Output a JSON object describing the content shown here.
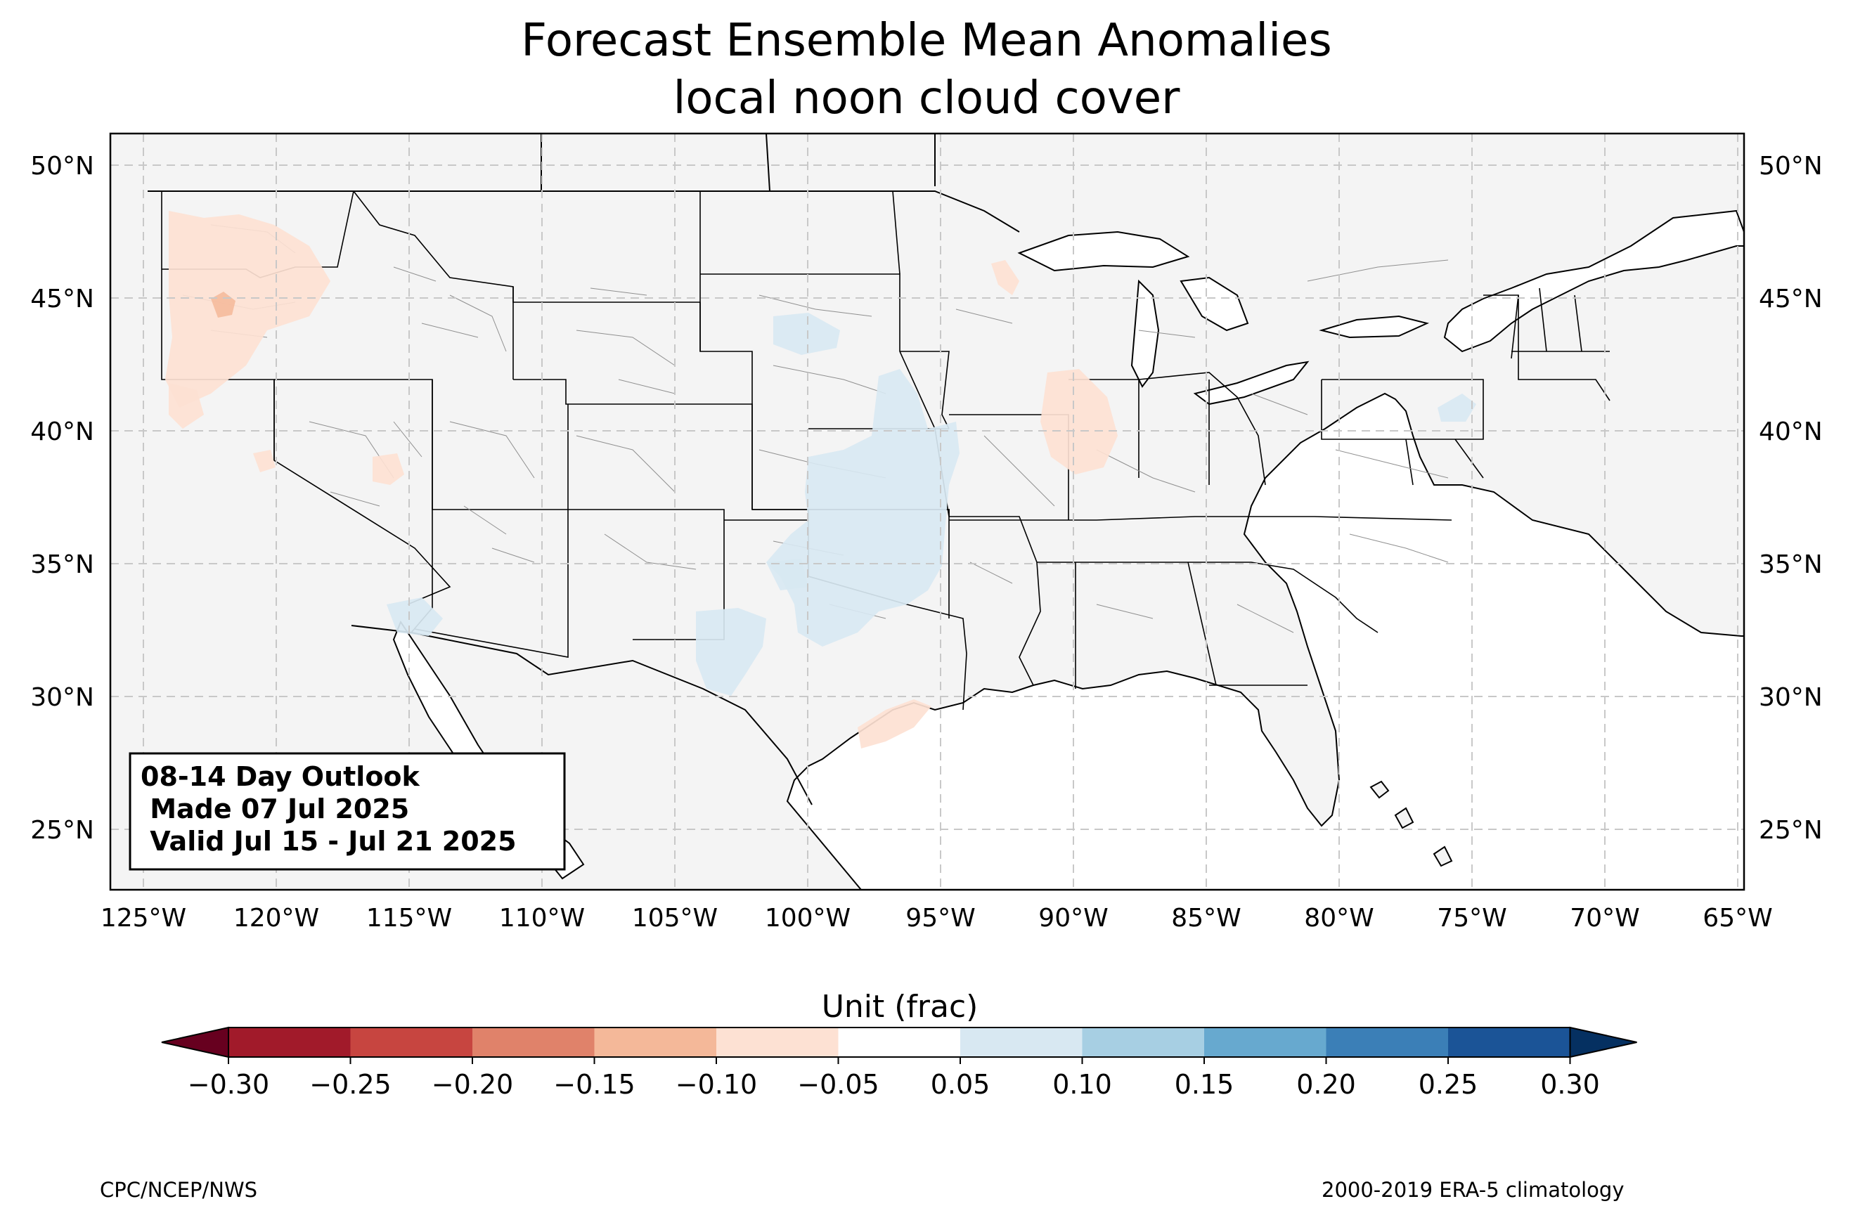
{
  "title": "Forecast Ensemble Mean Anomalies",
  "subtitle": "local noon cloud cover",
  "map": {
    "extent": {
      "lon": [
        -126.25,
        -64.75
      ],
      "lat": [
        22.7,
        51.2
      ]
    },
    "gridlines": "dashed",
    "lon_ticks": [
      "125°W",
      "120°W",
      "115°W",
      "110°W",
      "105°W",
      "100°W",
      "95°W",
      "90°W",
      "85°W",
      "80°W",
      "75°W",
      "70°W",
      "65°W"
    ],
    "lat_ticks": [
      "25°N",
      "30°N",
      "35°N",
      "40°N",
      "45°N",
      "50°N"
    ],
    "land_color": "#f4f4f4",
    "anomaly_regions": [
      {
        "area": "Pacific Northwest (Oregon, Washington)",
        "range": "-0.10 to -0.05",
        "core": "-0.15 to -0.10"
      },
      {
        "area": "Northern California",
        "range": "-0.10 to -0.05"
      },
      {
        "area": "Nevada",
        "range": "-0.10 to -0.05"
      },
      {
        "area": "Illinois",
        "range": "-0.10 to -0.05"
      },
      {
        "area": "Northern Wisconsin",
        "range": "-0.10 to -0.05"
      },
      {
        "area": "Texas coast",
        "range": "-0.10 to -0.05"
      },
      {
        "area": "Central Plains (Nebraska, Kansas, Oklahoma, Texas)",
        "range": "0.05 to 0.10"
      },
      {
        "area": "Southwest Texas / New Mexico",
        "range": "0.05 to 0.10"
      },
      {
        "area": "Southern Arizona",
        "range": "0.05 to 0.10"
      },
      {
        "area": "South Dakota",
        "range": "0.05 to 0.10"
      },
      {
        "area": "New Jersey / Pennsylvania",
        "range": "0.05 to 0.10"
      }
    ]
  },
  "infobox": {
    "line1": "08-14 Day Outlook",
    "line2": " Made 07 Jul 2025",
    "line3": " Valid Jul 15 - Jul 21 2025"
  },
  "colorbar": {
    "label": "Unit (frac)",
    "ticks": [
      "−0.30",
      "−0.25",
      "−0.20",
      "−0.15",
      "−0.10",
      "−0.05",
      "0.05",
      "0.10",
      "0.15",
      "0.20",
      "0.25",
      "0.30"
    ],
    "colors": [
      "#a11a2a",
      "#c74540",
      "#e0826a",
      "#f4b899",
      "#fde1d3",
      "#ffffff",
      "#d8e8f2",
      "#a7cfe3",
      "#67a9cf",
      "#3b7fb7",
      "#1b5497"
    ],
    "under_color": "#67001f",
    "over_color": "#053061"
  },
  "footer": {
    "left": "CPC/NCEP/NWS",
    "right": "2000-2019 ERA-5 climatology"
  }
}
